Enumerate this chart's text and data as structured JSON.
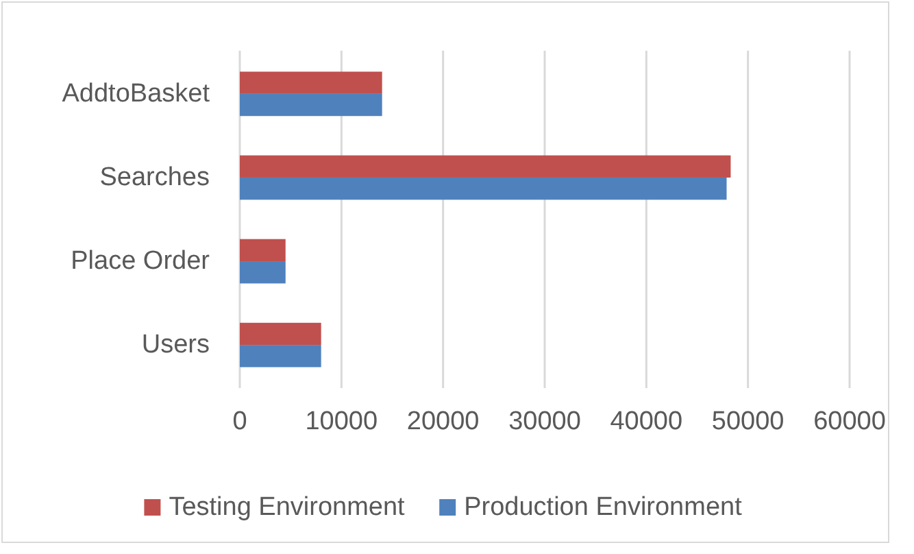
{
  "chart_data": {
    "type": "bar",
    "orientation": "horizontal",
    "categories": [
      "AddtoBasket",
      "Searches",
      "Place Order",
      "Users"
    ],
    "series": [
      {
        "name": "Testing Environment",
        "color": "#c0504d",
        "values": [
          14000,
          48300,
          4500,
          8000
        ]
      },
      {
        "name": "Production Environment",
        "color": "#4f81bd",
        "values": [
          14000,
          47900,
          4500,
          8000
        ]
      }
    ],
    "xlim": [
      0,
      60000
    ],
    "xticks": [
      0,
      10000,
      20000,
      30000,
      40000,
      50000,
      60000
    ],
    "grid": "x",
    "legend": "bottom"
  }
}
